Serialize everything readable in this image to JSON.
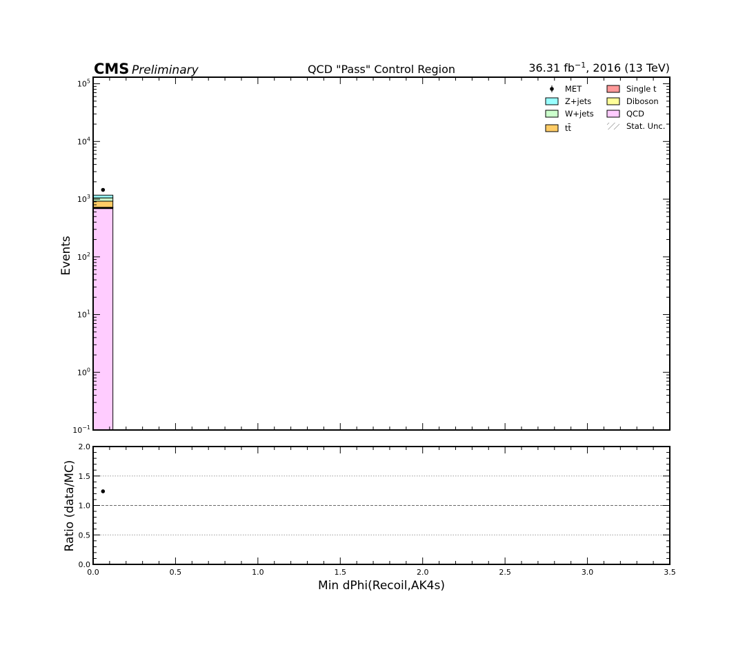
{
  "header": {
    "cms": "CMS",
    "preliminary": "Preliminary",
    "title": "QCD \"Pass\" Control Region",
    "lumi_value": "36.31 fb",
    "lumi_exp": "−1",
    "lumi_rest": ", 2016 (13 TeV)"
  },
  "chart_data": [
    {
      "type": "bar",
      "stacked": true,
      "log_y": true,
      "xlabel": "Min dPhi(Recoil,AK4s)",
      "ylabel": "Events",
      "xlim": [
        0,
        3.5
      ],
      "ylim": [
        0.1,
        130000
      ],
      "y_ticks": [
        {
          "base": "10",
          "exp": "−1",
          "v": 0.1
        },
        {
          "base": "10",
          "exp": "0",
          "v": 1
        },
        {
          "base": "10",
          "exp": "1",
          "v": 10
        },
        {
          "base": "10",
          "exp": "2",
          "v": 100
        },
        {
          "base": "10",
          "exp": "3",
          "v": 1000
        },
        {
          "base": "10",
          "exp": "4",
          "v": 10000
        },
        {
          "base": "10",
          "exp": "5",
          "v": 100000
        }
      ],
      "bins": [
        [
          0.0,
          0.12
        ]
      ],
      "series": [
        {
          "name": "QCD",
          "color": "#ffccff",
          "values": [
            700
          ]
        },
        {
          "name": "Diboson",
          "color": "#ffff99",
          "values": [
            8
          ]
        },
        {
          "name": "Single t",
          "color": "#ff9999",
          "values": [
            15
          ]
        },
        {
          "name": "tt̄",
          "color": "#ffcc66",
          "values": [
            200
          ]
        },
        {
          "name": "W+jets",
          "color": "#ccffcc",
          "values": [
            130
          ]
        },
        {
          "name": "Z+jets",
          "color": "#99ffff",
          "values": [
            120
          ]
        }
      ],
      "data": {
        "name": "MET",
        "x": [
          0.06
        ],
        "y": [
          1450
        ]
      },
      "legend": {
        "placement": "top-right",
        "left_column": [
          {
            "label": "MET",
            "kind": "marker"
          },
          {
            "label": "Z+jets",
            "kind": "box",
            "color": "#99ffff"
          },
          {
            "label": "W+jets",
            "kind": "box",
            "color": "#ccffcc"
          },
          {
            "label": "tt̄",
            "kind": "box",
            "color": "#ffcc66"
          }
        ],
        "right_column": [
          {
            "label": "Single t",
            "kind": "box",
            "color": "#ff9999"
          },
          {
            "label": "Diboson",
            "kind": "box",
            "color": "#ffff99"
          },
          {
            "label": "QCD",
            "kind": "box",
            "color": "#ffccff"
          },
          {
            "label": "Stat. Unc.",
            "kind": "hatch"
          }
        ]
      }
    },
    {
      "type": "scatter",
      "xlabel": "Min dPhi(Recoil,AK4s)",
      "ylabel": "Ratio (data/MC)",
      "xlim": [
        0,
        3.5
      ],
      "ylim": [
        0,
        2
      ],
      "x_ticks": [
        "0.0",
        "0.5",
        "1.0",
        "1.5",
        "2.0",
        "2.5",
        "3.0",
        "3.5"
      ],
      "y_ticks": [
        "0.0",
        "0.5",
        "1.0",
        "1.5",
        "2.0"
      ],
      "gridlines": [
        0.5,
        1.5
      ],
      "reference_line": 1.0,
      "points": [
        {
          "x": 0.06,
          "y": 1.24
        }
      ]
    }
  ]
}
